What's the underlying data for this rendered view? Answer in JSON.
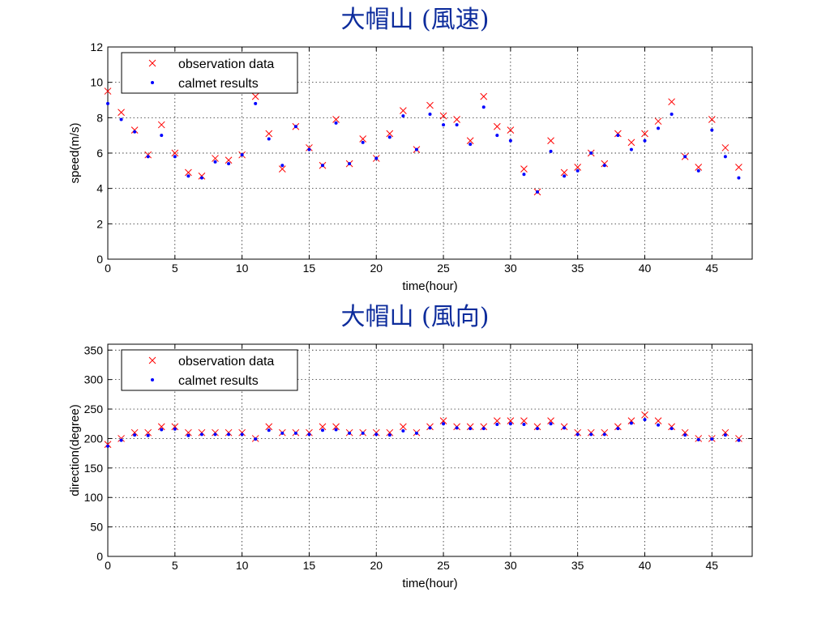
{
  "charts": {
    "speed": {
      "title": "大帽山 (風速)",
      "chart_data": {
        "type": "scatter",
        "xlabel": "time(hour)",
        "ylabel": "speed(m/s)",
        "xlim": [
          0,
          48
        ],
        "ylim": [
          0,
          12
        ],
        "xticks": [
          0,
          5,
          10,
          15,
          20,
          25,
          30,
          35,
          40,
          45
        ],
        "yticks": [
          0,
          2,
          4,
          6,
          8,
          10,
          12
        ],
        "grid": true,
        "legend_position": "top-left",
        "series": [
          {
            "name": "observation data",
            "marker": "x",
            "color": "#ff0000",
            "x": [
              0,
              1,
              2,
              3,
              4,
              5,
              6,
              7,
              8,
              9,
              10,
              11,
              12,
              13,
              14,
              15,
              16,
              17,
              18,
              19,
              20,
              21,
              22,
              23,
              24,
              25,
              26,
              27,
              28,
              29,
              30,
              31,
              32,
              33,
              34,
              35,
              36,
              37,
              38,
              39,
              40,
              41,
              42,
              43,
              44,
              45,
              46,
              47
            ],
            "y": [
              9.5,
              8.3,
              7.3,
              5.9,
              7.6,
              6.0,
              4.9,
              4.7,
              5.7,
              5.6,
              5.9,
              9.2,
              7.1,
              5.1,
              7.5,
              6.3,
              5.3,
              7.9,
              5.4,
              6.8,
              5.7,
              7.1,
              8.4,
              6.2,
              8.7,
              8.1,
              7.9,
              6.7,
              9.2,
              7.5,
              7.3,
              5.1,
              3.8,
              6.7,
              4.9,
              5.2,
              6.0,
              5.4,
              7.1,
              6.6,
              7.1,
              7.8,
              8.9,
              5.8,
              5.2,
              7.9,
              6.3,
              5.2
            ]
          },
          {
            "name": "calmet results",
            "marker": "dot",
            "color": "#0000ff",
            "x": [
              0,
              1,
              2,
              3,
              4,
              5,
              6,
              7,
              8,
              9,
              10,
              11,
              12,
              13,
              14,
              15,
              16,
              17,
              18,
              19,
              20,
              21,
              22,
              23,
              24,
              25,
              26,
              27,
              28,
              29,
              30,
              31,
              32,
              33,
              34,
              35,
              36,
              37,
              38,
              39,
              40,
              41,
              42,
              43,
              44,
              45,
              46,
              47
            ],
            "y": [
              8.8,
              7.9,
              7.2,
              5.8,
              7.0,
              5.8,
              4.7,
              4.6,
              5.5,
              5.4,
              5.9,
              8.8,
              6.8,
              5.3,
              7.5,
              6.2,
              5.3,
              7.7,
              5.4,
              6.6,
              5.7,
              6.9,
              8.1,
              6.2,
              8.2,
              7.6,
              7.6,
              6.5,
              8.6,
              7.0,
              6.7,
              4.8,
              3.8,
              6.1,
              4.7,
              5.0,
              6.0,
              5.3,
              7.0,
              6.2,
              6.7,
              7.4,
              8.2,
              5.8,
              5.0,
              7.3,
              5.8,
              4.6
            ]
          }
        ]
      }
    },
    "direction": {
      "title": "大帽山 (風向)",
      "chart_data": {
        "type": "scatter",
        "xlabel": "time(hour)",
        "ylabel": "direction(degree)",
        "xlim": [
          0,
          48
        ],
        "ylim": [
          0,
          360
        ],
        "xticks": [
          0,
          5,
          10,
          15,
          20,
          25,
          30,
          35,
          40,
          45
        ],
        "yticks": [
          0,
          50,
          100,
          150,
          200,
          250,
          300,
          350
        ],
        "grid": true,
        "legend_position": "top-left",
        "series": [
          {
            "name": "observation data",
            "marker": "x",
            "color": "#ff0000",
            "x": [
              0,
              1,
              2,
              3,
              4,
              5,
              6,
              7,
              8,
              9,
              10,
              11,
              12,
              13,
              14,
              15,
              16,
              17,
              18,
              19,
              20,
              21,
              22,
              23,
              24,
              25,
              26,
              27,
              28,
              29,
              30,
              31,
              32,
              33,
              34,
              35,
              36,
              37,
              38,
              39,
              40,
              41,
              42,
              43,
              44,
              45,
              46,
              47
            ],
            "y": [
              190,
              200,
              210,
              210,
              220,
              220,
              210,
              210,
              210,
              210,
              210,
              200,
              220,
              210,
              210,
              210,
              220,
              220,
              210,
              210,
              210,
              210,
              220,
              210,
              220,
              230,
              220,
              220,
              220,
              230,
              230,
              230,
              220,
              230,
              220,
              210,
              210,
              210,
              220,
              230,
              240,
              230,
              220,
              210,
              200,
              200,
              210,
              200
            ]
          },
          {
            "name": "calmet results",
            "marker": "dot",
            "color": "#0000ff",
            "x": [
              0,
              1,
              2,
              3,
              4,
              5,
              6,
              7,
              8,
              9,
              10,
              11,
              12,
              13,
              14,
              15,
              16,
              17,
              18,
              19,
              20,
              21,
              22,
              23,
              24,
              25,
              26,
              27,
              28,
              29,
              30,
              31,
              32,
              33,
              34,
              35,
              36,
              37,
              38,
              39,
              40,
              41,
              42,
              43,
              44,
              45,
              46,
              47
            ],
            "y": [
              187,
              197,
              206,
              205,
              215,
              216,
              205,
              207,
              207,
              207,
              207,
              199,
              214,
              209,
              209,
              207,
              214,
              215,
              209,
              209,
              207,
              206,
              213,
              209,
              218,
              225,
              218,
              217,
              217,
              224,
              225,
              224,
              217,
              225,
              218,
              207,
              207,
              207,
              217,
              226,
              232,
              223,
              217,
              206,
              198,
              199,
              206,
              197
            ]
          }
        ]
      }
    }
  }
}
